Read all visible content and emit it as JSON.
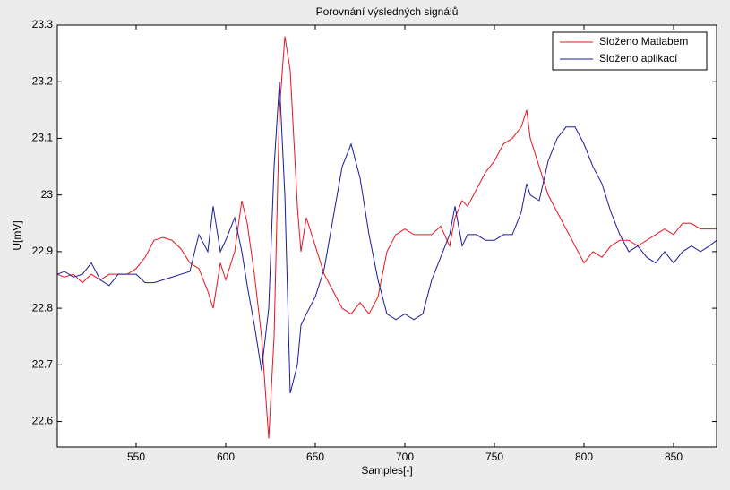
{
  "chart_data": {
    "type": "line",
    "title": "Porovnání výsledných signálů",
    "x_label": "Samples[-]",
    "y_label": "U[mV]",
    "x": [
      506,
      510,
      515,
      520,
      525,
      530,
      535,
      540,
      545,
      550,
      555,
      560,
      565,
      570,
      575,
      580,
      585,
      590,
      593,
      597,
      600,
      605,
      609,
      612,
      616,
      620,
      624,
      627,
      630,
      633,
      636,
      640,
      642,
      645,
      650,
      655,
      660,
      665,
      670,
      675,
      680,
      685,
      690,
      695,
      700,
      705,
      710,
      715,
      720,
      725,
      728,
      732,
      735,
      740,
      745,
      750,
      755,
      760,
      765,
      768,
      770,
      775,
      780,
      785,
      790,
      795,
      800,
      805,
      810,
      815,
      820,
      825,
      830,
      835,
      840,
      845,
      850,
      855,
      860,
      865,
      870,
      874
    ],
    "series": [
      {
        "name": "Složeno Matlabem",
        "color": "#e8141e",
        "values": [
          22.86,
          22.855,
          22.86,
          22.845,
          22.86,
          22.85,
          22.86,
          22.86,
          22.86,
          22.87,
          22.89,
          22.92,
          22.925,
          22.92,
          22.905,
          22.88,
          22.87,
          22.83,
          22.8,
          22.88,
          22.85,
          22.9,
          22.99,
          22.95,
          22.86,
          22.75,
          22.57,
          22.75,
          23.15,
          23.28,
          23.22,
          22.98,
          22.9,
          22.96,
          22.91,
          22.86,
          22.83,
          22.8,
          22.79,
          22.81,
          22.79,
          22.82,
          22.9,
          22.93,
          22.94,
          22.93,
          22.93,
          22.93,
          22.945,
          22.91,
          22.96,
          22.99,
          22.98,
          23.01,
          23.04,
          23.06,
          23.09,
          23.1,
          23.12,
          23.15,
          23.1,
          23.05,
          23.0,
          22.97,
          22.94,
          22.91,
          22.88,
          22.9,
          22.89,
          22.91,
          22.92,
          22.92,
          22.91,
          22.92,
          22.93,
          22.94,
          22.93,
          22.95,
          22.95,
          22.94,
          22.94,
          22.94
        ]
      },
      {
        "name": "Složeno aplikací",
        "color": "#1a1a9a",
        "values": [
          22.86,
          22.865,
          22.855,
          22.86,
          22.88,
          22.85,
          22.84,
          22.86,
          22.86,
          22.86,
          22.845,
          22.845,
          22.85,
          22.855,
          22.86,
          22.865,
          22.93,
          22.9,
          22.98,
          22.9,
          22.92,
          22.96,
          22.9,
          22.84,
          22.77,
          22.69,
          22.8,
          23.05,
          23.2,
          23.0,
          22.65,
          22.7,
          22.77,
          22.79,
          22.82,
          22.87,
          22.96,
          23.05,
          23.09,
          23.03,
          22.93,
          22.85,
          22.79,
          22.78,
          22.79,
          22.78,
          22.79,
          22.85,
          22.89,
          22.93,
          22.98,
          22.91,
          22.93,
          22.93,
          22.92,
          22.92,
          22.93,
          22.93,
          22.97,
          23.02,
          23.0,
          22.99,
          23.06,
          23.1,
          23.12,
          23.12,
          23.09,
          23.05,
          23.02,
          22.97,
          22.93,
          22.9,
          22.91,
          22.89,
          22.88,
          22.9,
          22.88,
          22.9,
          22.91,
          22.9,
          22.91,
          22.92
        ]
      }
    ],
    "xlim": [
      506,
      874
    ],
    "xticks": [
      550,
      600,
      650,
      700,
      750,
      800,
      850
    ],
    "ylim": [
      22.555,
      23.3
    ],
    "yticks": [
      22.6,
      22.7,
      22.8,
      22.9,
      23,
      23.1,
      23.2,
      23.3
    ],
    "legend": "top-right"
  }
}
